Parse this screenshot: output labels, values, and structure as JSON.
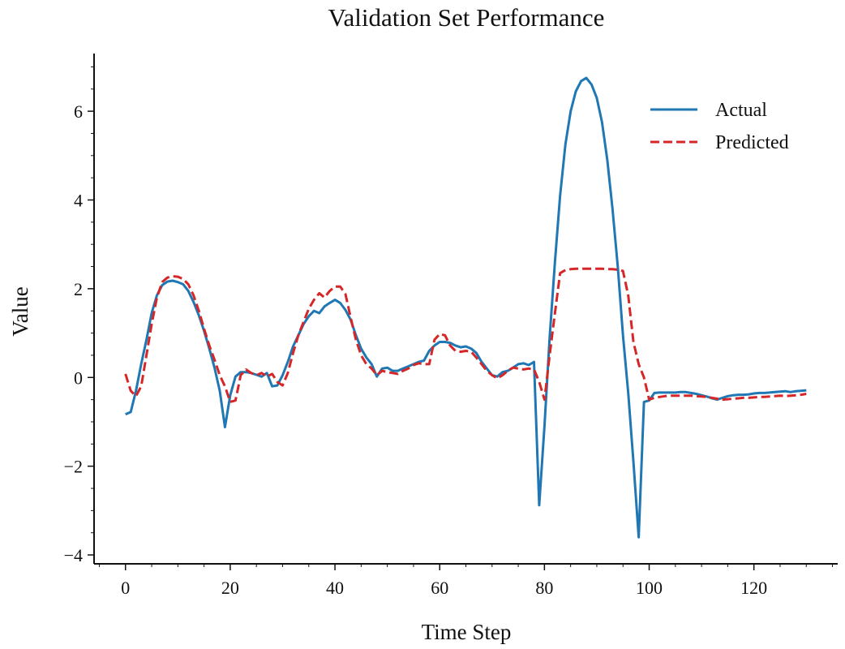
{
  "chart_data": {
    "type": "line",
    "title": "Validation Set Performance",
    "xlabel": "Time Step",
    "ylabel": "Value",
    "xlim": [
      -6,
      136
    ],
    "ylim": [
      -4.2,
      7.3
    ],
    "xticks": [
      0,
      20,
      40,
      60,
      80,
      100,
      120
    ],
    "yticks": [
      -4,
      -2,
      0,
      2,
      4,
      6
    ],
    "ytick_labels": [
      "−4",
      "−2",
      "0",
      "2",
      "4",
      "6"
    ],
    "grid": false,
    "legend_position": "top-right",
    "series": [
      {
        "name": "Actual",
        "color": "#1f77b4",
        "style": "solid",
        "x": [
          0,
          1,
          2,
          3,
          4,
          5,
          6,
          7,
          8,
          9,
          10,
          11,
          12,
          13,
          14,
          15,
          16,
          17,
          18,
          19,
          20,
          21,
          22,
          23,
          24,
          25,
          26,
          27,
          28,
          29,
          30,
          31,
          32,
          33,
          34,
          35,
          36,
          37,
          38,
          39,
          40,
          41,
          42,
          43,
          44,
          45,
          46,
          47,
          48,
          49,
          50,
          51,
          52,
          53,
          54,
          55,
          56,
          57,
          58,
          59,
          60,
          61,
          62,
          63,
          64,
          65,
          66,
          67,
          68,
          69,
          70,
          71,
          72,
          73,
          74,
          75,
          76,
          77,
          78,
          79,
          80,
          81,
          82,
          83,
          84,
          85,
          86,
          87,
          88,
          89,
          90,
          91,
          92,
          93,
          94,
          95,
          96,
          97,
          98,
          99,
          100,
          101,
          102,
          103,
          104,
          105,
          106,
          107,
          108,
          109,
          110,
          111,
          112,
          113,
          114,
          115,
          116,
          117,
          118,
          119,
          120,
          121,
          122,
          123,
          124,
          125,
          126,
          127,
          128,
          129,
          130
        ],
        "values": [
          -0.83,
          -0.78,
          -0.3,
          0.3,
          0.85,
          1.45,
          1.85,
          2.08,
          2.16,
          2.18,
          2.15,
          2.1,
          1.95,
          1.7,
          1.4,
          1.05,
          0.65,
          0.22,
          -0.3,
          -1.12,
          -0.4,
          0.02,
          0.12,
          0.12,
          0.1,
          0.06,
          0.02,
          0.1,
          -0.2,
          -0.18,
          0.05,
          0.35,
          0.7,
          0.95,
          1.2,
          1.38,
          1.5,
          1.45,
          1.6,
          1.68,
          1.75,
          1.68,
          1.52,
          1.3,
          0.95,
          0.65,
          0.45,
          0.3,
          0.02,
          0.2,
          0.22,
          0.15,
          0.15,
          0.2,
          0.25,
          0.3,
          0.35,
          0.38,
          0.6,
          0.72,
          0.8,
          0.8,
          0.78,
          0.72,
          0.68,
          0.7,
          0.65,
          0.55,
          0.35,
          0.2,
          0.05,
          0.02,
          0.12,
          0.15,
          0.22,
          0.3,
          0.32,
          0.28,
          0.35,
          -2.88,
          -1.1,
          0.9,
          2.6,
          4.1,
          5.25,
          6.0,
          6.45,
          6.68,
          6.75,
          6.6,
          6.3,
          5.75,
          4.9,
          3.8,
          2.5,
          0.95,
          -0.35,
          -1.9,
          -3.6,
          -0.55,
          -0.52,
          -0.35,
          -0.34,
          -0.34,
          -0.34,
          -0.34,
          -0.33,
          -0.33,
          -0.35,
          -0.37,
          -0.4,
          -0.43,
          -0.47,
          -0.5,
          -0.46,
          -0.42,
          -0.4,
          -0.39,
          -0.39,
          -0.38,
          -0.36,
          -0.35,
          -0.35,
          -0.34,
          -0.33,
          -0.32,
          -0.31,
          -0.33,
          -0.31,
          -0.3,
          -0.29
        ]
      },
      {
        "name": "Predicted",
        "color": "#d62728",
        "style": "dashed",
        "x": [
          0,
          1,
          2,
          3,
          4,
          5,
          6,
          7,
          8,
          9,
          10,
          11,
          12,
          13,
          14,
          15,
          16,
          17,
          18,
          19,
          20,
          21,
          22,
          23,
          24,
          25,
          26,
          27,
          28,
          29,
          30,
          31,
          32,
          33,
          34,
          35,
          36,
          37,
          38,
          39,
          40,
          41,
          42,
          43,
          44,
          45,
          46,
          47,
          48,
          49,
          50,
          51,
          52,
          53,
          54,
          55,
          56,
          57,
          58,
          59,
          60,
          61,
          62,
          63,
          64,
          65,
          66,
          67,
          68,
          69,
          70,
          71,
          72,
          73,
          74,
          75,
          76,
          77,
          78,
          79,
          80,
          81,
          82,
          83,
          84,
          85,
          86,
          87,
          88,
          89,
          90,
          91,
          92,
          93,
          94,
          95,
          96,
          97,
          98,
          99,
          100,
          101,
          102,
          103,
          104,
          105,
          106,
          107,
          108,
          109,
          110,
          111,
          112,
          113,
          114,
          115,
          116,
          117,
          118,
          119,
          120,
          121,
          122,
          123,
          124,
          125,
          126,
          127,
          128,
          129,
          130
        ],
        "values": [
          0.08,
          -0.3,
          -0.42,
          -0.2,
          0.5,
          1.2,
          1.8,
          2.15,
          2.25,
          2.28,
          2.27,
          2.22,
          2.1,
          1.85,
          1.5,
          1.1,
          0.72,
          0.4,
          0.05,
          -0.2,
          -0.55,
          -0.52,
          0.05,
          0.18,
          0.1,
          0.05,
          0.1,
          0.02,
          0.08,
          -0.1,
          -0.18,
          0.1,
          0.55,
          0.95,
          1.25,
          1.55,
          1.75,
          1.9,
          1.8,
          1.95,
          2.05,
          2.05,
          1.88,
          1.35,
          0.85,
          0.5,
          0.3,
          0.2,
          0.05,
          0.15,
          0.12,
          0.1,
          0.08,
          0.15,
          0.2,
          0.28,
          0.32,
          0.3,
          0.3,
          0.85,
          0.98,
          0.95,
          0.72,
          0.6,
          0.58,
          0.6,
          0.58,
          0.45,
          0.3,
          0.15,
          0.05,
          -0.02,
          0.05,
          0.15,
          0.22,
          0.2,
          0.18,
          0.2,
          0.18,
          -0.1,
          -0.5,
          0.5,
          1.45,
          2.35,
          2.42,
          2.44,
          2.45,
          2.45,
          2.45,
          2.45,
          2.45,
          2.45,
          2.44,
          2.44,
          2.43,
          2.4,
          1.85,
          0.8,
          0.3,
          0.0,
          -0.5,
          -0.46,
          -0.44,
          -0.42,
          -0.41,
          -0.41,
          -0.41,
          -0.41,
          -0.41,
          -0.42,
          -0.43,
          -0.44,
          -0.46,
          -0.48,
          -0.5,
          -0.49,
          -0.48,
          -0.47,
          -0.46,
          -0.46,
          -0.45,
          -0.44,
          -0.44,
          -0.43,
          -0.42,
          -0.41,
          -0.42,
          -0.41,
          -0.4,
          -0.39,
          -0.37
        ]
      }
    ]
  }
}
